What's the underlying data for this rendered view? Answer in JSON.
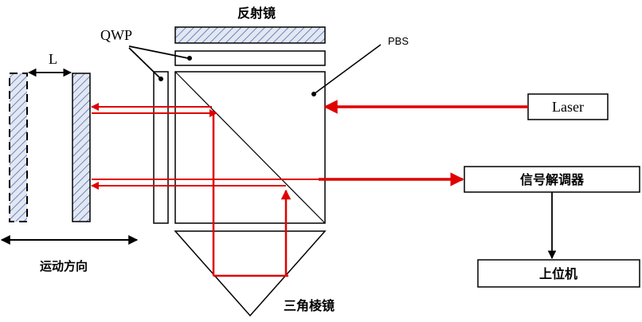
{
  "labels": {
    "mirror": "反射镜",
    "qwp": "QWP",
    "pbs": "PBS",
    "laser": "Laser",
    "distance": "L",
    "demodulator": "信号解调器",
    "host_computer": "上位机",
    "motion_direction": "运动方向",
    "prism": "三角棱镜"
  },
  "colors": {
    "beam": "#e00000",
    "line": "#000000",
    "hatch": "#4a6fb5",
    "hatch_bg": "#d6dcec"
  }
}
